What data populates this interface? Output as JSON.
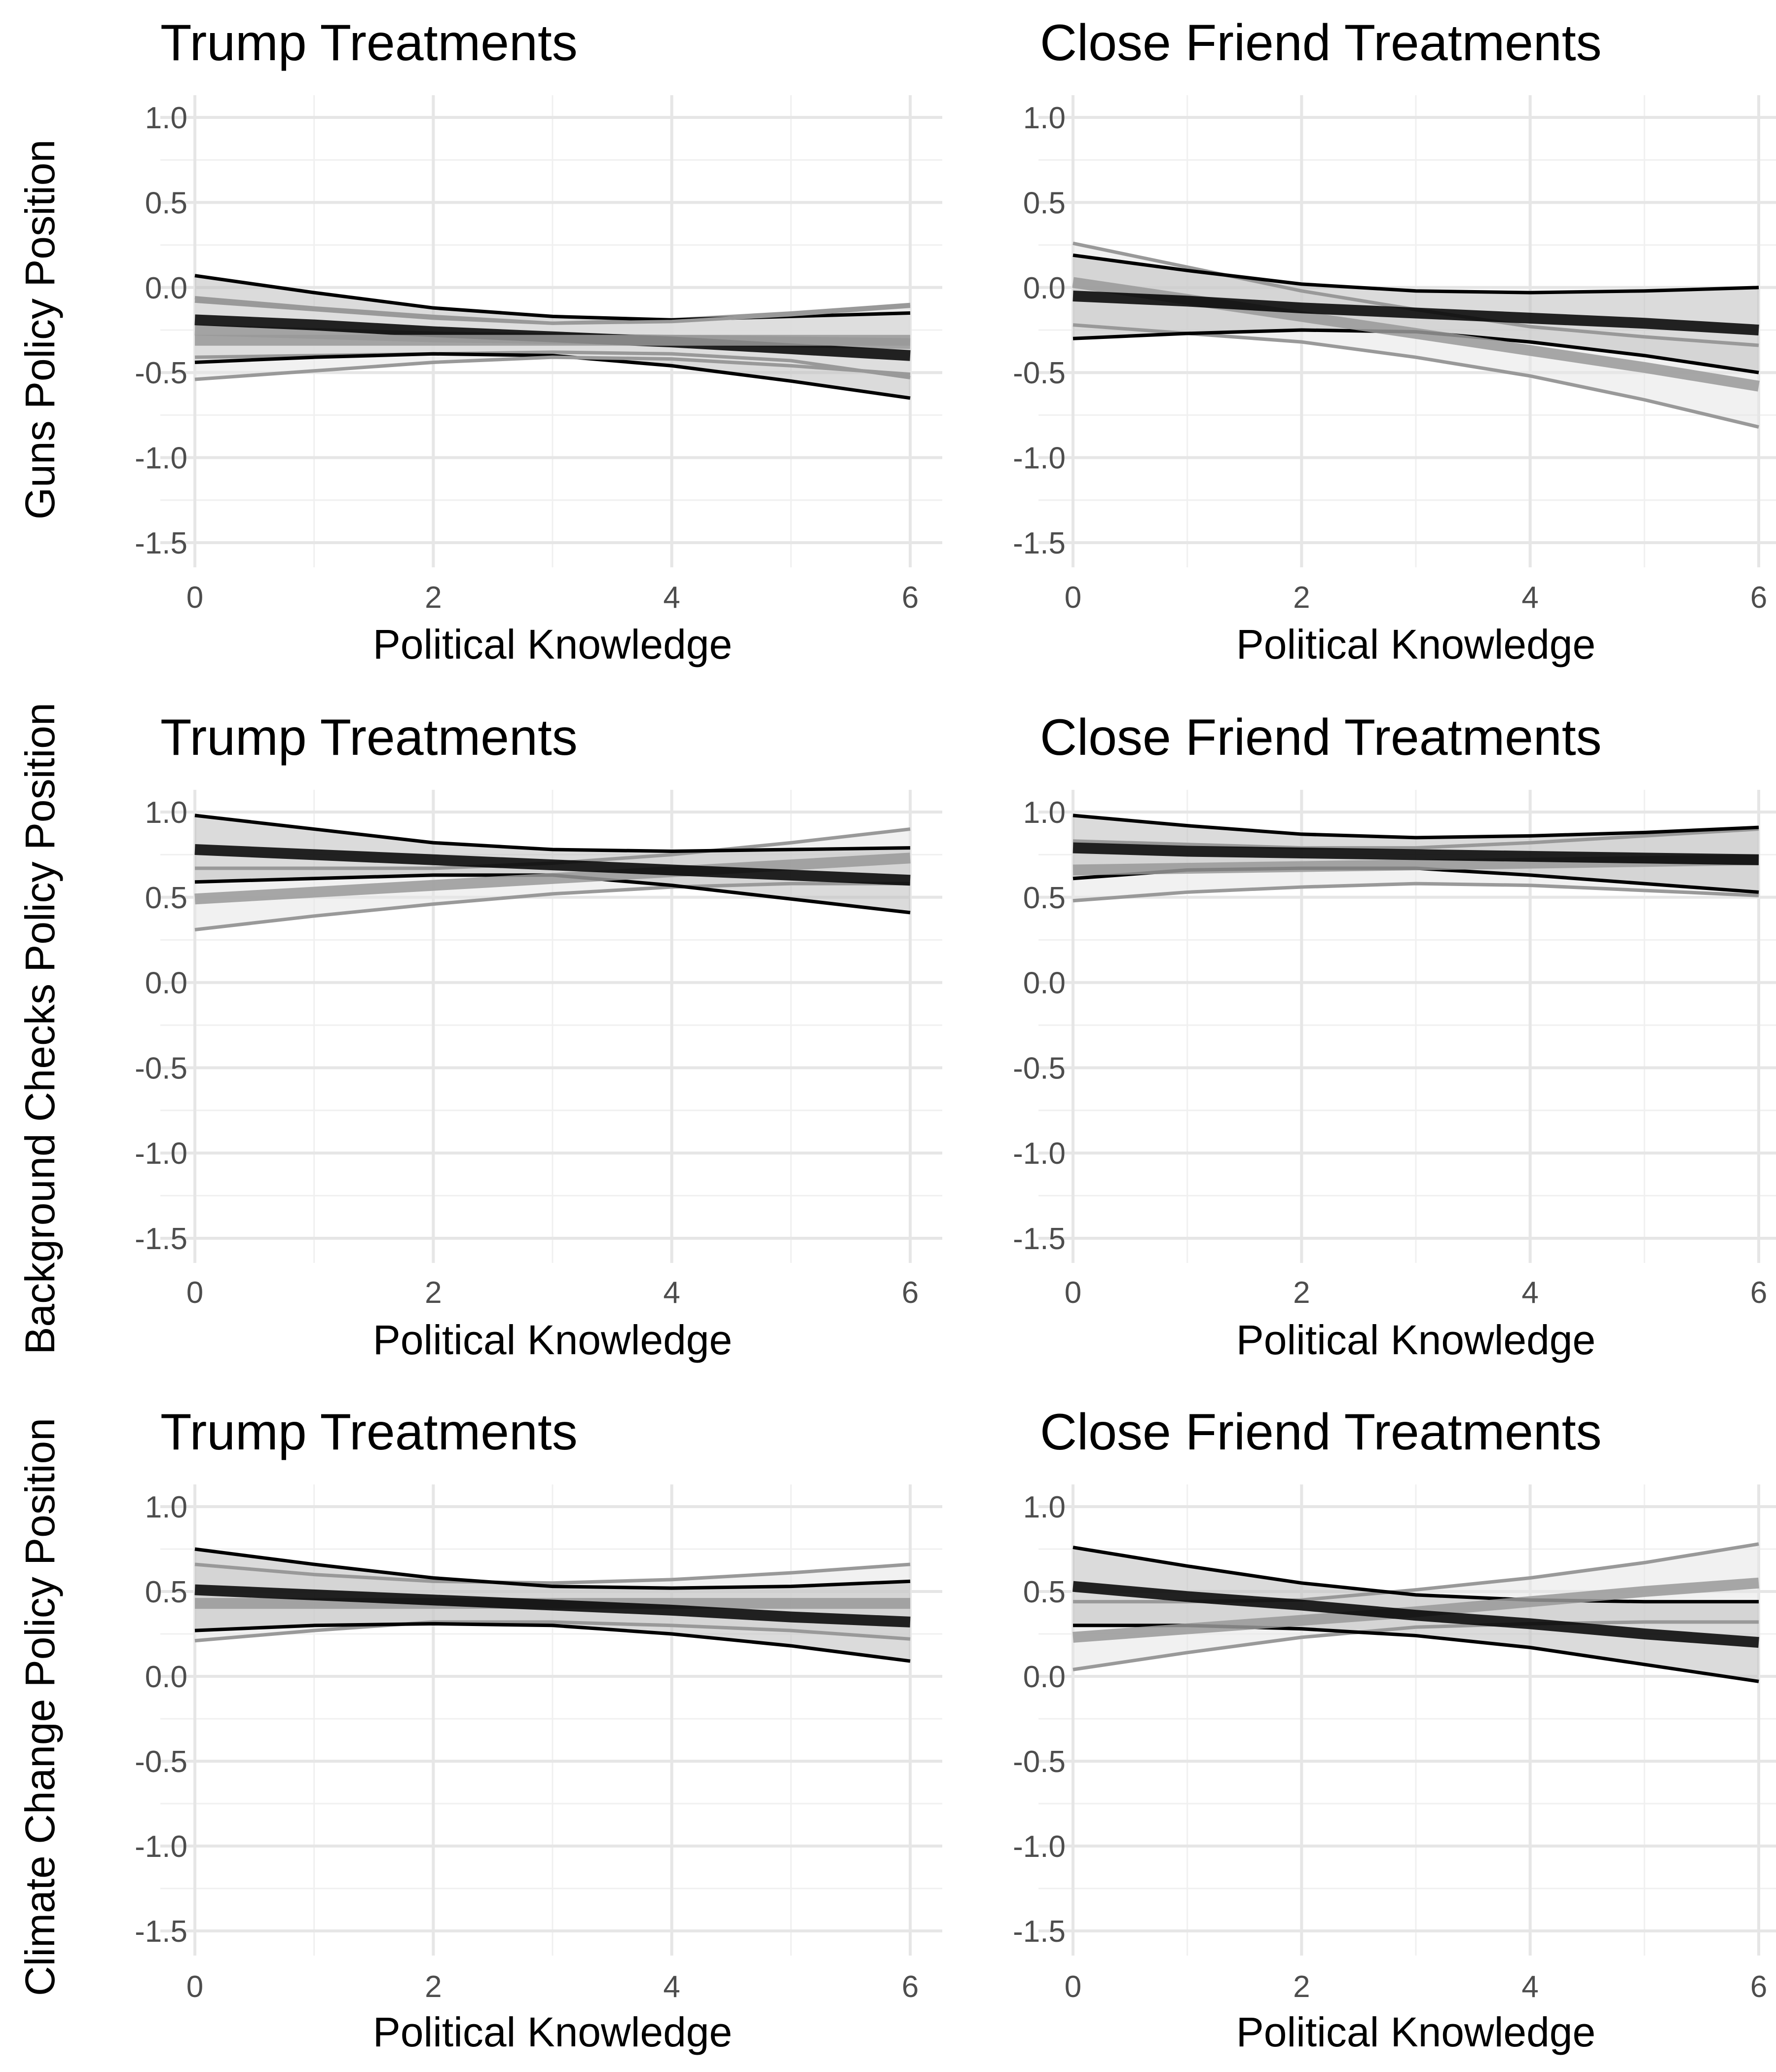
{
  "colors": {
    "background": "#ffffff",
    "grid_major": "#e6e6e6",
    "grid_minor": "#f0f0f0",
    "series_black": "#000000",
    "series_gray": "#999999",
    "band_black_fill": "#bdbdbd",
    "band_gray_fill": "#e5e5e5"
  },
  "chart_data": [
    {
      "type": "line",
      "row": 0,
      "col": 0,
      "title": "Trump Treatments",
      "ylabel": "Guns Policy Position",
      "xlabel": "Political Knowledge",
      "xlim": [
        0,
        6
      ],
      "ylim": [
        -1.5,
        1.0
      ],
      "xticks": [
        "0",
        "2",
        "4",
        "6"
      ],
      "yticks": [
        "1.0",
        "0.5",
        "0.0",
        "-0.5",
        "-1.0",
        "-1.5"
      ],
      "grid": true,
      "series": [
        {
          "x": [
            0,
            1,
            2,
            3,
            4,
            5,
            6
          ],
          "y": [
            -0.25,
            -0.27,
            -0.29,
            -0.3,
            -0.31,
            -0.32,
            -0.33
          ],
          "lower": [
            -0.41,
            -0.4,
            -0.39,
            -0.38,
            -0.39,
            -0.43,
            -0.53
          ],
          "upper": [
            -0.06,
            -0.12,
            -0.17,
            -0.21,
            -0.19,
            -0.15,
            -0.1
          ],
          "color": "#999999",
          "band": "#e5e5e5"
        },
        {
          "x": [
            0,
            1,
            2,
            3,
            4,
            5,
            6
          ],
          "y": [
            -0.19,
            -0.22,
            -0.26,
            -0.29,
            -0.32,
            -0.36,
            -0.4
          ],
          "lower": [
            -0.44,
            -0.41,
            -0.39,
            -0.4,
            -0.46,
            -0.55,
            -0.65
          ],
          "upper": [
            0.07,
            -0.03,
            -0.12,
            -0.17,
            -0.19,
            -0.17,
            -0.15
          ],
          "color": "#000000",
          "band": "#bdbdbd"
        },
        {
          "x": [
            0,
            1,
            2,
            3,
            4,
            5,
            6
          ],
          "y": [
            -0.31,
            -0.31,
            -0.31,
            -0.31,
            -0.31,
            -0.31,
            -0.31
          ],
          "lower": [
            -0.54,
            -0.49,
            -0.44,
            -0.41,
            -0.42,
            -0.46,
            -0.51
          ],
          "upper": [
            -0.08,
            -0.13,
            -0.18,
            -0.21,
            -0.2,
            -0.16,
            -0.11
          ],
          "color": "#999999",
          "band": "#e5e5e5"
        }
      ]
    },
    {
      "type": "line",
      "row": 0,
      "col": 1,
      "title": "Close Friend Treatments",
      "xlabel": "Political Knowledge",
      "xlim": [
        0,
        6
      ],
      "ylim": [
        -1.5,
        1.0
      ],
      "xticks": [
        "0",
        "2",
        "4",
        "6"
      ],
      "yticks": [
        "1.0",
        "0.5",
        "0.0",
        "-0.5",
        "-1.0",
        "-1.5"
      ],
      "grid": true,
      "series": [
        {
          "x": [
            0,
            1,
            2,
            3,
            4,
            5,
            6
          ],
          "y": [
            0.03,
            -0.07,
            -0.17,
            -0.27,
            -0.37,
            -0.47,
            -0.58
          ],
          "lower": [
            -0.22,
            -0.27,
            -0.32,
            -0.41,
            -0.52,
            -0.66,
            -0.82
          ],
          "upper": [
            0.26,
            0.12,
            -0.02,
            -0.13,
            -0.23,
            -0.29,
            -0.34
          ],
          "color": "#999999",
          "band": "#e5e5e5"
        },
        {
          "x": [
            0,
            1,
            2,
            3,
            4,
            5,
            6
          ],
          "y": [
            -0.05,
            -0.08,
            -0.12,
            -0.15,
            -0.18,
            -0.21,
            -0.25
          ],
          "lower": [
            -0.3,
            -0.27,
            -0.25,
            -0.26,
            -0.32,
            -0.4,
            -0.5
          ],
          "upper": [
            0.19,
            0.1,
            0.02,
            -0.02,
            -0.03,
            -0.02,
            0.0
          ],
          "color": "#000000",
          "band": "#bdbdbd"
        }
      ]
    },
    {
      "type": "line",
      "row": 1,
      "col": 0,
      "title": "Trump Treatments",
      "ylabel": "Background Checks Policy Position",
      "xlabel": "Political Knowledge",
      "xlim": [
        0,
        6
      ],
      "ylim": [
        -1.5,
        1.0
      ],
      "xticks": [
        "0",
        "2",
        "4",
        "6"
      ],
      "yticks": [
        "1.0",
        "0.5",
        "0.0",
        "-0.5",
        "-1.0",
        "-1.5"
      ],
      "grid": true,
      "series": [
        {
          "x": [
            0,
            1,
            2,
            3,
            4,
            5,
            6
          ],
          "y": [
            0.49,
            0.53,
            0.57,
            0.61,
            0.65,
            0.69,
            0.73
          ],
          "lower": [
            0.31,
            0.39,
            0.46,
            0.52,
            0.56,
            0.58,
            0.58
          ],
          "upper": [
            0.67,
            0.67,
            0.67,
            0.7,
            0.75,
            0.82,
            0.9
          ],
          "color": "#999999",
          "band": "#e5e5e5"
        },
        {
          "x": [
            0,
            1,
            2,
            3,
            4,
            5,
            6
          ],
          "y": [
            0.78,
            0.75,
            0.72,
            0.69,
            0.66,
            0.63,
            0.6
          ],
          "lower": [
            0.59,
            0.61,
            0.63,
            0.63,
            0.57,
            0.49,
            0.41
          ],
          "upper": [
            0.98,
            0.9,
            0.82,
            0.78,
            0.77,
            0.78,
            0.79
          ],
          "color": "#000000",
          "band": "#bdbdbd"
        }
      ]
    },
    {
      "type": "line",
      "row": 1,
      "col": 1,
      "title": "Close Friend Treatments",
      "xlabel": "Political Knowledge",
      "xlim": [
        0,
        6
      ],
      "ylim": [
        -1.5,
        1.0
      ],
      "xticks": [
        "0",
        "2",
        "4",
        "6"
      ],
      "yticks": [
        "1.0",
        "0.5",
        "0.0",
        "-0.5",
        "-1.0",
        "-1.5"
      ],
      "grid": true,
      "series": [
        {
          "x": [
            0,
            1,
            2,
            3,
            4,
            5,
            6
          ],
          "y": [
            0.66,
            0.67,
            0.68,
            0.69,
            0.7,
            0.71,
            0.72
          ],
          "lower": [
            0.48,
            0.53,
            0.56,
            0.58,
            0.57,
            0.54,
            0.51
          ],
          "upper": [
            0.83,
            0.81,
            0.79,
            0.79,
            0.82,
            0.86,
            0.9
          ],
          "color": "#999999",
          "band": "#e5e5e5"
        },
        {
          "x": [
            0,
            1,
            2,
            3,
            4,
            5,
            6
          ],
          "y": [
            0.79,
            0.77,
            0.76,
            0.75,
            0.74,
            0.73,
            0.72
          ],
          "lower": [
            0.61,
            0.66,
            0.67,
            0.67,
            0.63,
            0.58,
            0.53
          ],
          "upper": [
            0.98,
            0.92,
            0.87,
            0.85,
            0.86,
            0.88,
            0.91
          ],
          "color": "#000000",
          "band": "#bdbdbd"
        }
      ]
    },
    {
      "type": "line",
      "row": 2,
      "col": 0,
      "title": "Trump Treatments",
      "ylabel": "Climate Change Policy Position",
      "xlabel": "Political Knowledge",
      "xlim": [
        0,
        6
      ],
      "ylim": [
        -1.5,
        1.0
      ],
      "xticks": [
        "0",
        "2",
        "4",
        "6"
      ],
      "yticks": [
        "1.0",
        "0.5",
        "0.0",
        "-0.5",
        "-1.0",
        "-1.5"
      ],
      "grid": true,
      "series": [
        {
          "x": [
            0,
            1,
            2,
            3,
            4,
            5,
            6
          ],
          "y": [
            0.43,
            0.43,
            0.43,
            0.43,
            0.43,
            0.43,
            0.43
          ],
          "lower": [
            0.21,
            0.27,
            0.32,
            0.32,
            0.3,
            0.27,
            0.22
          ],
          "upper": [
            0.66,
            0.6,
            0.56,
            0.55,
            0.57,
            0.61,
            0.66
          ],
          "color": "#999999",
          "band": "#e5e5e5"
        },
        {
          "x": [
            0,
            1,
            2,
            3,
            4,
            5,
            6
          ],
          "y": [
            0.51,
            0.48,
            0.45,
            0.42,
            0.39,
            0.35,
            0.32
          ],
          "lower": [
            0.27,
            0.3,
            0.31,
            0.3,
            0.25,
            0.18,
            0.09
          ],
          "upper": [
            0.75,
            0.66,
            0.58,
            0.53,
            0.52,
            0.53,
            0.56
          ],
          "color": "#000000",
          "band": "#bdbdbd"
        }
      ]
    },
    {
      "type": "line",
      "row": 2,
      "col": 1,
      "title": "Close Friend Treatments",
      "xlabel": "Political Knowledge",
      "xlim": [
        0,
        6
      ],
      "ylim": [
        -1.5,
        1.0
      ],
      "xticks": [
        "0",
        "2",
        "4",
        "6"
      ],
      "yticks": [
        "1.0",
        "0.5",
        "0.0",
        "-0.5",
        "-1.0",
        "-1.5"
      ],
      "grid": true,
      "series": [
        {
          "x": [
            0,
            1,
            2,
            3,
            4,
            5,
            6
          ],
          "y": [
            0.23,
            0.28,
            0.33,
            0.38,
            0.44,
            0.5,
            0.55
          ],
          "lower": [
            0.04,
            0.14,
            0.23,
            0.29,
            0.31,
            0.32,
            0.32
          ],
          "upper": [
            0.44,
            0.44,
            0.45,
            0.51,
            0.58,
            0.67,
            0.78
          ],
          "color": "#999999",
          "band": "#e5e5e5"
        },
        {
          "x": [
            0,
            1,
            2,
            3,
            4,
            5,
            6
          ],
          "y": [
            0.53,
            0.47,
            0.42,
            0.36,
            0.31,
            0.25,
            0.2
          ],
          "lower": [
            0.3,
            0.3,
            0.28,
            0.24,
            0.17,
            0.07,
            -0.03
          ],
          "upper": [
            0.76,
            0.65,
            0.55,
            0.48,
            0.45,
            0.44,
            0.44
          ],
          "color": "#000000",
          "band": "#bdbdbd"
        }
      ]
    }
  ]
}
